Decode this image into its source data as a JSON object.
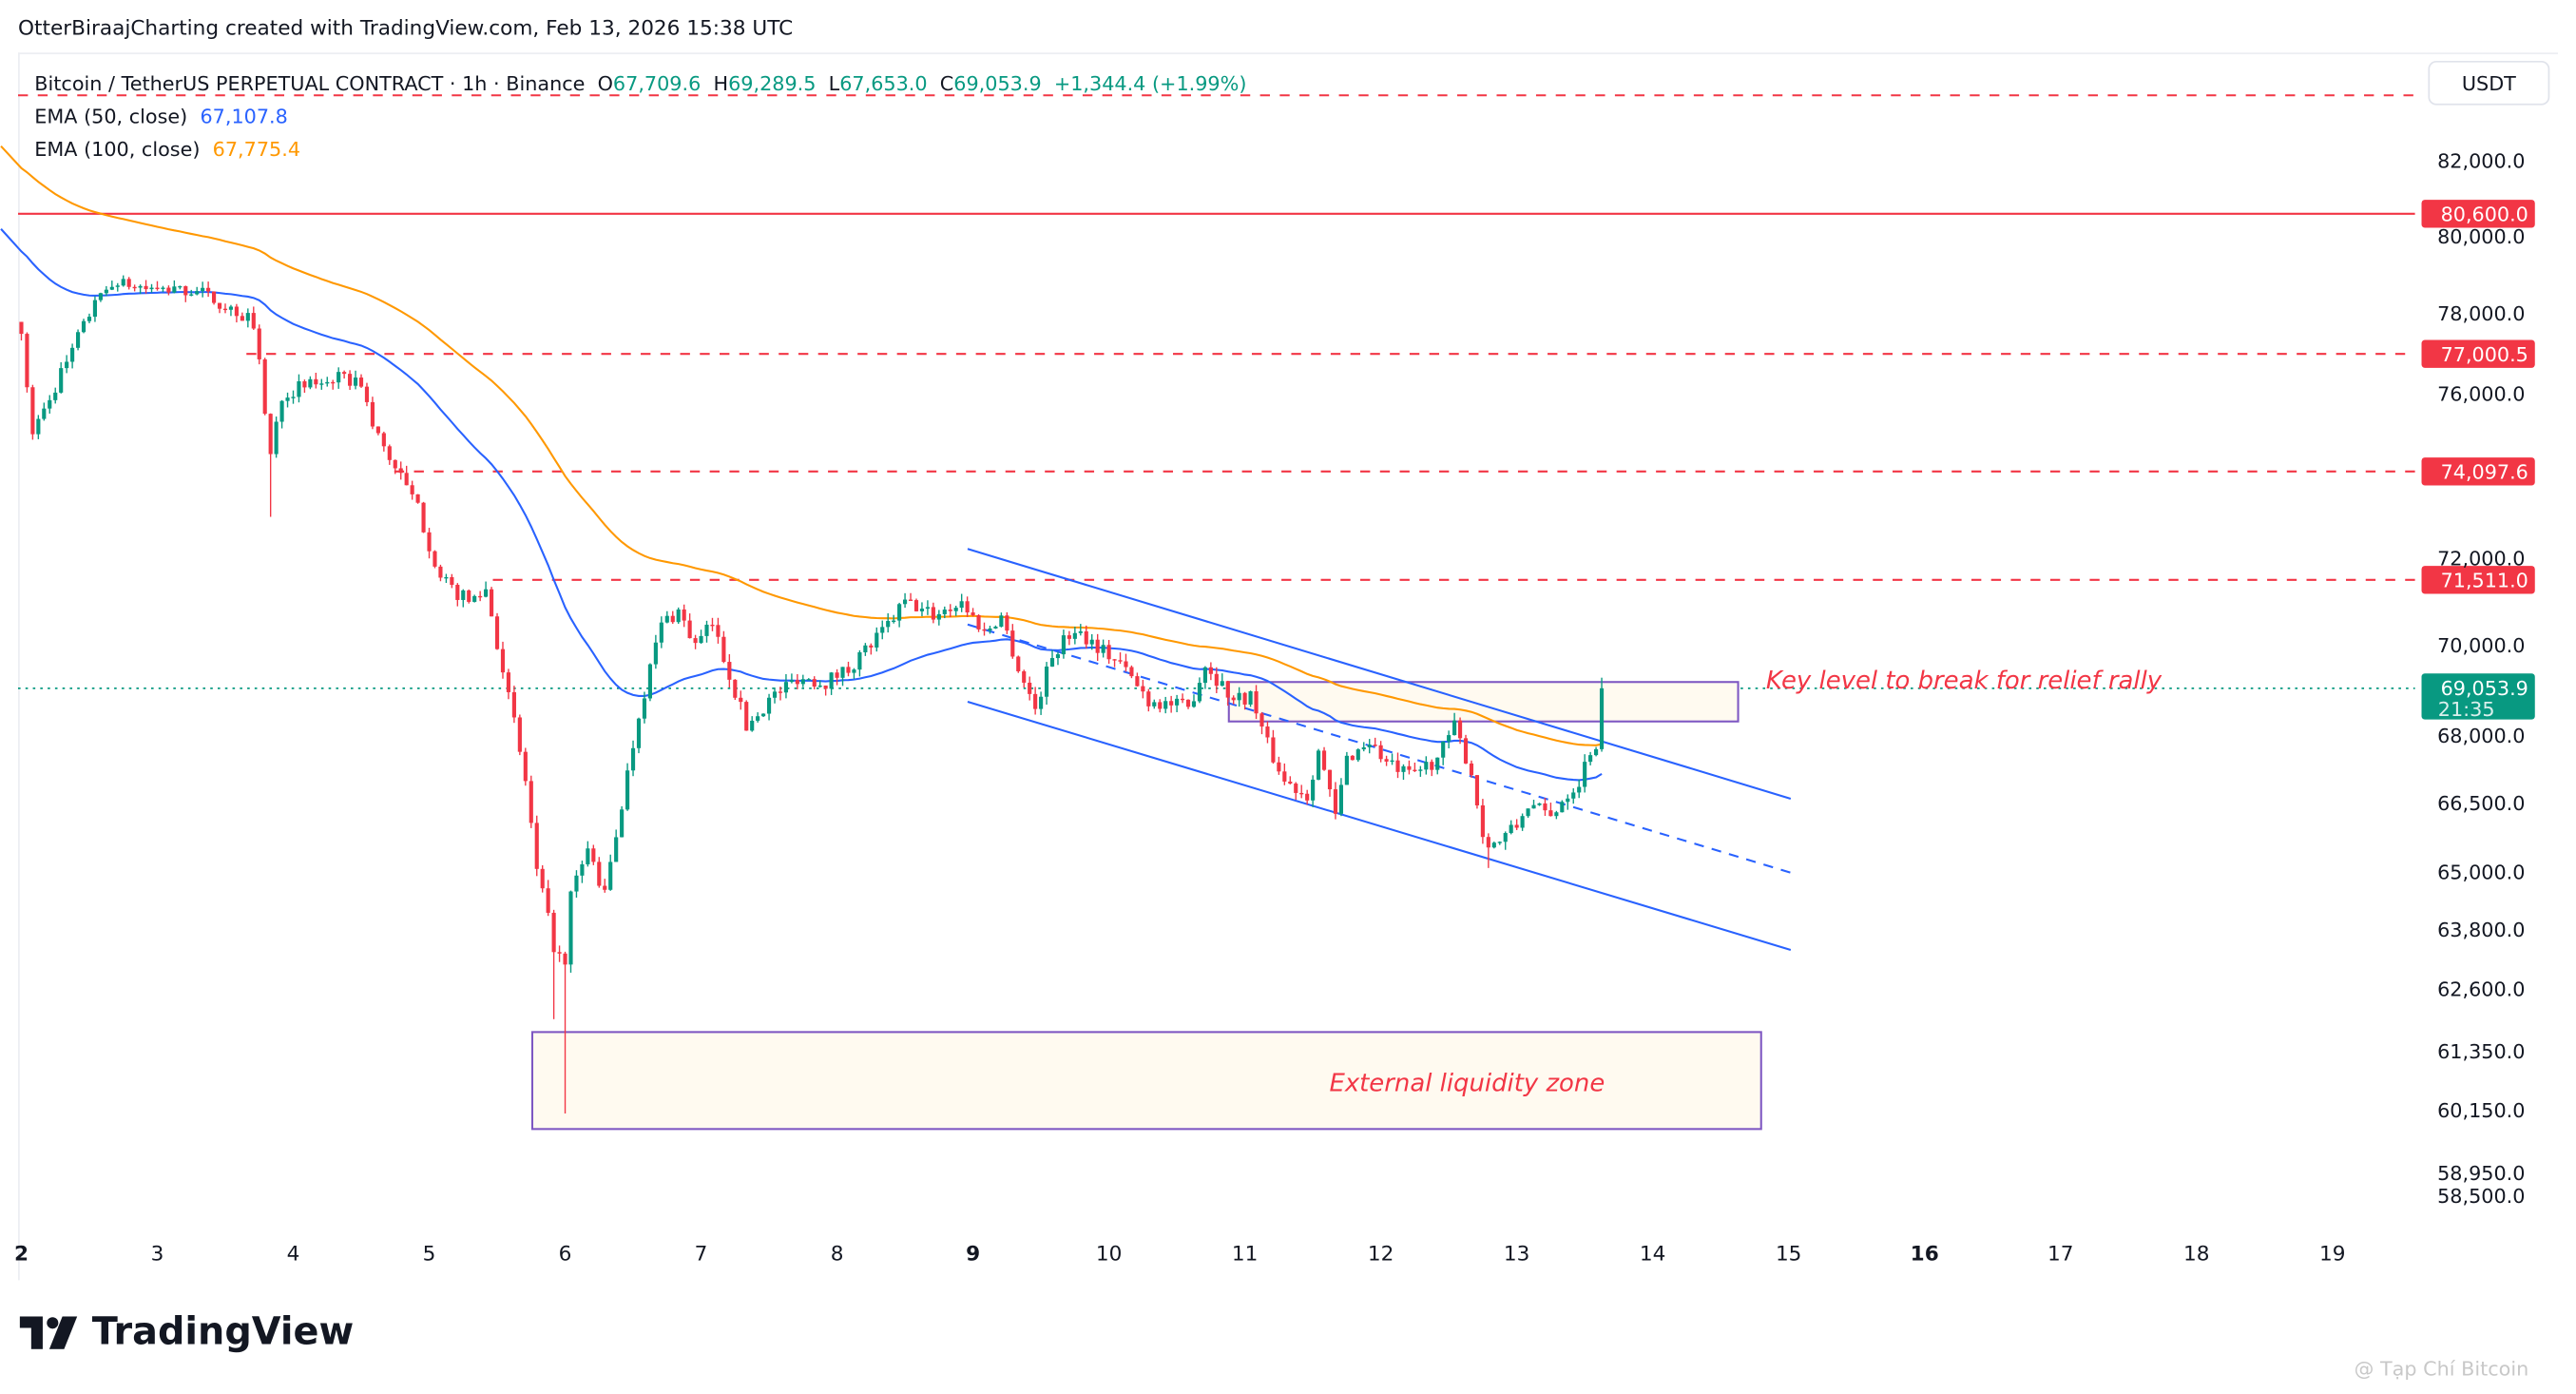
{
  "caption": "OtterBiraajCharting created with TradingView.com, Feb 13, 2026 15:38 UTC",
  "legend": {
    "symbol": "Bitcoin / TetherUS PERPETUAL CONTRACT · 1h · Binance",
    "o_label": "O",
    "o": "67,709.6",
    "h_label": "H",
    "h": "69,289.5",
    "l_label": "L",
    "l": "67,653.0",
    "c_label": "C",
    "c": "69,053.9",
    "change": "+1,344.4 (+1.99%)",
    "ema50_label": "EMA (50, close)",
    "ema50": "67,107.8",
    "ema100_label": "EMA (100, close)",
    "ema100": "67,775.4"
  },
  "currency_button": "USDT",
  "logo_text": "TradingView",
  "watermark": "@ Tạp Chí Bitcoin",
  "colors": {
    "up": "#089981",
    "down": "#f23645",
    "ema50": "#2962ff",
    "ema100": "#ff9800",
    "levels": "#f23645",
    "channel": "#2962ff",
    "zones": "#7e57c2"
  },
  "chart_data": {
    "type": "candlestick",
    "interval": "1h",
    "y_scale": "log",
    "price_ticks": [
      {
        "v": 82000,
        "t": "82,000.0"
      },
      {
        "v": 80000,
        "t": "80,000.0"
      },
      {
        "v": 78000,
        "t": "78,000.0"
      },
      {
        "v": 76000,
        "t": "76,000.0"
      },
      {
        "v": 72000,
        "t": "72,000.0"
      },
      {
        "v": 70000,
        "t": "70,000.0"
      },
      {
        "v": 68000,
        "t": "68,000.0"
      },
      {
        "v": 66500,
        "t": "66,500.0"
      },
      {
        "v": 65000,
        "t": "65,000.0"
      },
      {
        "v": 63800,
        "t": "63,800.0"
      },
      {
        "v": 62600,
        "t": "62,600.0"
      },
      {
        "v": 61350,
        "t": "61,350.0"
      },
      {
        "v": 60150,
        "t": "60,150.0"
      },
      {
        "v": 58950,
        "t": "58,950.0"
      },
      {
        "v": 58500,
        "t": "58,500.0"
      }
    ],
    "x_ticks": [
      {
        "d": 2,
        "t": "2",
        "emph": true
      },
      {
        "d": 3,
        "t": "3"
      },
      {
        "d": 4,
        "t": "4"
      },
      {
        "d": 5,
        "t": "5"
      },
      {
        "d": 6,
        "t": "6"
      },
      {
        "d": 7,
        "t": "7"
      },
      {
        "d": 8,
        "t": "8"
      },
      {
        "d": 9,
        "t": "9",
        "emph": true
      },
      {
        "d": 10,
        "t": "10"
      },
      {
        "d": 11,
        "t": "11"
      },
      {
        "d": 12,
        "t": "12"
      },
      {
        "d": 13,
        "t": "13"
      },
      {
        "d": 14,
        "t": "14"
      },
      {
        "d": 15,
        "t": "15"
      },
      {
        "d": 16,
        "t": "16",
        "emph": true
      },
      {
        "d": 17,
        "t": "17"
      },
      {
        "d": 18,
        "t": "18"
      },
      {
        "d": 19,
        "t": "19"
      }
    ],
    "close_path": [
      [
        "Feb 2 00:00",
        77500
      ],
      [
        "Feb 2 02:00",
        75000
      ],
      [
        "Feb 2 07:00",
        76500
      ],
      [
        "Feb 2 12:00",
        78000
      ],
      [
        "Feb 2 16:00",
        78800
      ],
      [
        "Feb 3 00:00",
        78600
      ],
      [
        "Feb 3 07:00",
        78600
      ],
      [
        "Feb 3 12:00",
        78200
      ],
      [
        "Feb 3 17:00",
        77800
      ],
      [
        "Feb 3 18:00",
        76700
      ],
      [
        "Feb 3 20:00",
        74500
      ],
      [
        "Feb 3 22:00",
        76000
      ],
      [
        "Feb 4 02:00",
        76200
      ],
      [
        "Feb 4 07:00",
        76400
      ],
      [
        "Feb 4 12:00",
        76300
      ],
      [
        "Feb 4 14:00",
        75200
      ],
      [
        "Feb 4 18:00",
        74200
      ],
      [
        "Feb 4 22:00",
        73200
      ],
      [
        "Feb 5 02:00",
        71500
      ],
      [
        "Feb 5 07:00",
        71000
      ],
      [
        "Feb 5 10:00",
        71300
      ],
      [
        "Feb 5 13:00",
        69500
      ],
      [
        "Feb 5 17:00",
        67000
      ],
      [
        "Feb 5 19:00",
        65000
      ],
      [
        "Feb 5 22:00",
        63500
      ],
      [
        "Feb 6 00:00",
        63000
      ],
      [
        "Feb 6 01:00",
        64500
      ],
      [
        "Feb 6 04:00",
        65500
      ],
      [
        "Feb 6 07:00",
        64500
      ],
      [
        "Feb 6 10:00",
        66500
      ],
      [
        "Feb 6 13:00",
        68500
      ],
      [
        "Feb 6 17:00",
        70500
      ],
      [
        "Feb 6 20:00",
        70800
      ],
      [
        "Feb 6 23:00",
        70000
      ],
      [
        "Feb 7 02:00",
        70500
      ],
      [
        "Feb 7 06:00",
        69000
      ],
      [
        "Feb 7 08:00",
        68200
      ],
      [
        "Feb 7 12:00",
        68800
      ],
      [
        "Feb 7 17:00",
        69300
      ],
      [
        "Feb 7 22:00",
        69200
      ],
      [
        "Feb 8 02:00",
        69500
      ],
      [
        "Feb 8 08:00",
        70300
      ],
      [
        "Feb 8 12:00",
        71000
      ],
      [
        "Feb 8 17:00",
        70700
      ],
      [
        "Feb 8 22:00",
        71000
      ],
      [
        "Feb 9 02:00",
        70300
      ],
      [
        "Feb 9 05:00",
        70700
      ],
      [
        "Feb 9 08:00",
        69500
      ],
      [
        "Feb 9 11:00",
        68600
      ],
      [
        "Feb 9 14:00",
        69800
      ],
      [
        "Feb 9 18:00",
        70400
      ],
      [
        "Feb 9 22:00",
        70000
      ],
      [
        "Feb 10 02:00",
        69600
      ],
      [
        "Feb 10 07:00",
        68800
      ],
      [
        "Feb 10 11:00",
        68700
      ],
      [
        "Feb 10 14:00",
        68600
      ],
      [
        "Feb 10 17:00",
        69600
      ],
      [
        "Feb 10 22:00",
        68800
      ],
      [
        "Feb 11 01:00",
        68900
      ],
      [
        "Feb 11 04:00",
        67800
      ],
      [
        "Feb 11 07:00",
        67000
      ],
      [
        "Feb 11 11:00",
        66700
      ],
      [
        "Feb 11 13:00",
        67700
      ],
      [
        "Feb 11 16:00",
        66200
      ],
      [
        "Feb 11 18:00",
        67500
      ],
      [
        "Feb 11 22:00",
        67900
      ],
      [
        "Feb 12 01:00",
        67400
      ],
      [
        "Feb 12 05:00",
        67100
      ],
      [
        "Feb 12 10:00",
        67500
      ],
      [
        "Feb 12 13:00",
        68200
      ],
      [
        "Feb 12 16:00",
        67200
      ],
      [
        "Feb 12 18:00",
        65800
      ],
      [
        "Feb 12 20:00",
        65600
      ],
      [
        "Feb 13 00:00",
        66000
      ],
      [
        "Feb 13 02:00",
        66500
      ],
      [
        "Feb 13 06:00",
        66200
      ],
      [
        "Feb 13 08:00",
        66600
      ],
      [
        "Feb 13 11:00",
        67000
      ],
      [
        "Feb 13 13:00",
        67700
      ],
      [
        "Feb 13 14:00",
        67709.6
      ]
    ],
    "wick_lows": [
      [
        "Feb 6 00:00",
        60100
      ],
      [
        "Feb 3 20:00",
        73000
      ],
      [
        "Feb 5 22:00",
        62000
      ],
      [
        "Feb 12 19:00",
        65100
      ]
    ],
    "last_candle": {
      "t": "Feb 13 15:00",
      "o": 67709.6,
      "h": 69289.5,
      "l": 67653.0,
      "c": 69053.9
    },
    "levels": [
      {
        "price": 80600,
        "label": "80,600.0",
        "style": "solid"
      },
      {
        "price": 77000.5,
        "label": "77,000.5",
        "style": "dashed"
      },
      {
        "price": 74097.6,
        "label": "74,097.6",
        "style": "dashed"
      },
      {
        "price": 71511,
        "label": "71,511.0",
        "style": "dashed"
      }
    ],
    "current_price": {
      "label": "69,053.9",
      "countdown": "21:35"
    },
    "annotations": {
      "key_level": "Key level to break for relief rally",
      "liquidity_zone": "External liquidity zone"
    }
  }
}
